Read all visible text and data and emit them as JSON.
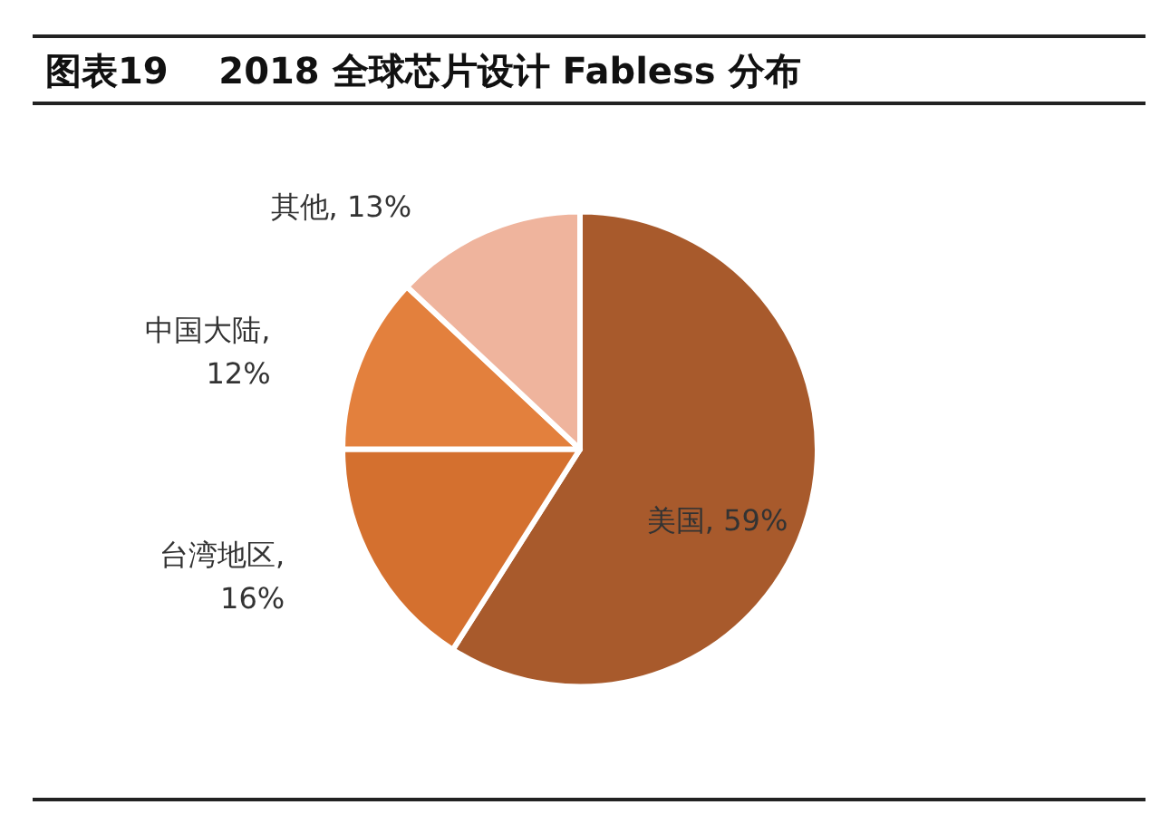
{
  "chart_data": {
    "type": "pie",
    "title": "图表19    2018 全球芯片设计 Fabless 分布",
    "categories": [
      "美国",
      "台湾地区",
      "中国大陆",
      "其他"
    ],
    "values": [
      59,
      16,
      12,
      13
    ],
    "colors": [
      "#a85a2c",
      "#d4702f",
      "#e3803d",
      "#efb49d"
    ],
    "value_labels": [
      ", 59%",
      ",\n16%",
      ",\n12%",
      ", 13%"
    ],
    "legend": false
  }
}
